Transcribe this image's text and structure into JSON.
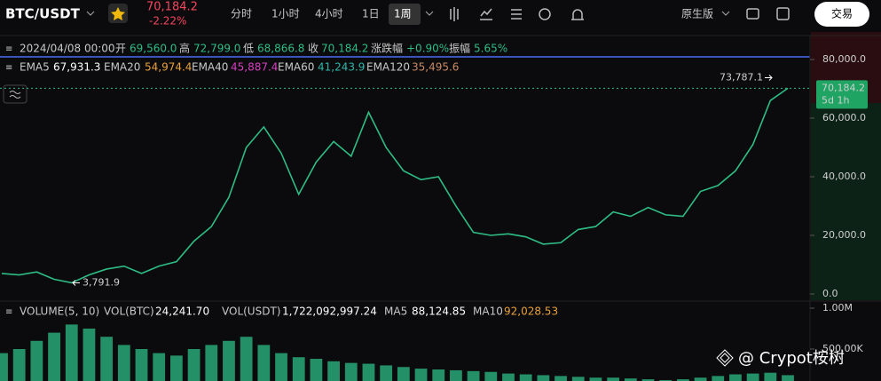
{
  "ui": {
    "symbol": "BTC/USDT",
    "price": "70,184.2",
    "change": "-2.22%",
    "tabs": [
      "分时",
      "1小时",
      "4小时",
      "1日",
      "1周"
    ],
    "version": "原生版",
    "trade_button": "交易",
    "info": {
      "date": "2024/04/08 00:00",
      "open_label": "开",
      "open": "69,560.0",
      "high_label": "高",
      "high": "72,799.0",
      "low_label": "低",
      "low": "68,866.8",
      "close_label": "收",
      "close": "70,184.2",
      "change_label": "涨跌幅",
      "change": "+0.90%",
      "amplitude_label": "振幅",
      "amplitude": "5.65%"
    },
    "ema": [
      {
        "name": "EMA5",
        "value": "67,931.3"
      },
      {
        "name": "EMA20",
        "value": "54,974.4"
      },
      {
        "name": "EMA40",
        "value": "45,887.4"
      },
      {
        "name": "EMA60",
        "value": "41,243.9"
      },
      {
        "name": "EMA120",
        "value": "35,495.6"
      }
    ],
    "volume": {
      "title": "VOLUME(5, 10)",
      "vol_btc_label": "VOL(BTC)",
      "vol_btc": "24,241.70",
      "vol_usdt_label": "VOL(USDT)",
      "vol_usdt": "1,722,092,997.24",
      "ma5_label": "MA5",
      "ma5": "88,124.85",
      "ma10_label": "MA10",
      "ma10": "92,028.53"
    },
    "watermark": "@ Crypot桉树"
  },
  "chart_data": [
    {
      "type": "line",
      "series": [
        {
          "name": "BTC/USDT",
          "color": "#2ebd85",
          "values": [
            7000,
            6500,
            7500,
            5000,
            3800,
            6500,
            8500,
            9500,
            7000,
            9500,
            11000,
            18000,
            23000,
            33000,
            50000,
            57000,
            48000,
            34000,
            45000,
            52000,
            47000,
            62000,
            50000,
            42000,
            39000,
            40000,
            30000,
            21000,
            20000,
            20500,
            19500,
            17000,
            17500,
            22000,
            23000,
            28000,
            26500,
            29500,
            27000,
            26500,
            35000,
            37000,
            42000,
            51000,
            66000,
            70184.2
          ]
        }
      ],
      "ylim": [
        0,
        88000
      ],
      "yticks": [
        {
          "value": 80000,
          "label": "80,000.0"
        },
        {
          "value": 60000,
          "label": "60,000.0"
        },
        {
          "value": 40000,
          "label": "40,000.0"
        },
        {
          "value": 20000,
          "label": "20,000.0"
        },
        {
          "value": 0,
          "label": "0.0"
        }
      ],
      "price_tag": {
        "value": 70184.2,
        "label": "70,184.2",
        "countdown": "5d 1h"
      },
      "high_mark": {
        "value": 73787.1,
        "label": "73,787.1"
      },
      "low_mark": {
        "value": 3791.9,
        "label": "3,791.9"
      }
    },
    {
      "type": "bar",
      "color": "#2ebd85",
      "values": [
        450000,
        500000,
        600000,
        700000,
        800000,
        750000,
        650000,
        550000,
        500000,
        450000,
        420000,
        500000,
        550000,
        600000,
        650000,
        550000,
        450000,
        400000,
        380000,
        350000,
        330000,
        320000,
        300000,
        280000,
        260000,
        250000,
        240000,
        230000,
        220000,
        200000,
        190000,
        180000,
        170000,
        160000,
        150000,
        150000,
        140000,
        130000,
        120000,
        130000,
        150000,
        170000,
        190000,
        200000,
        210000,
        180000
      ],
      "ylim": [
        0,
        1000000
      ],
      "yticks": [
        {
          "value": 1000000,
          "label": "1.00M"
        },
        {
          "value": 500000,
          "label": "500.00K"
        }
      ]
    }
  ]
}
